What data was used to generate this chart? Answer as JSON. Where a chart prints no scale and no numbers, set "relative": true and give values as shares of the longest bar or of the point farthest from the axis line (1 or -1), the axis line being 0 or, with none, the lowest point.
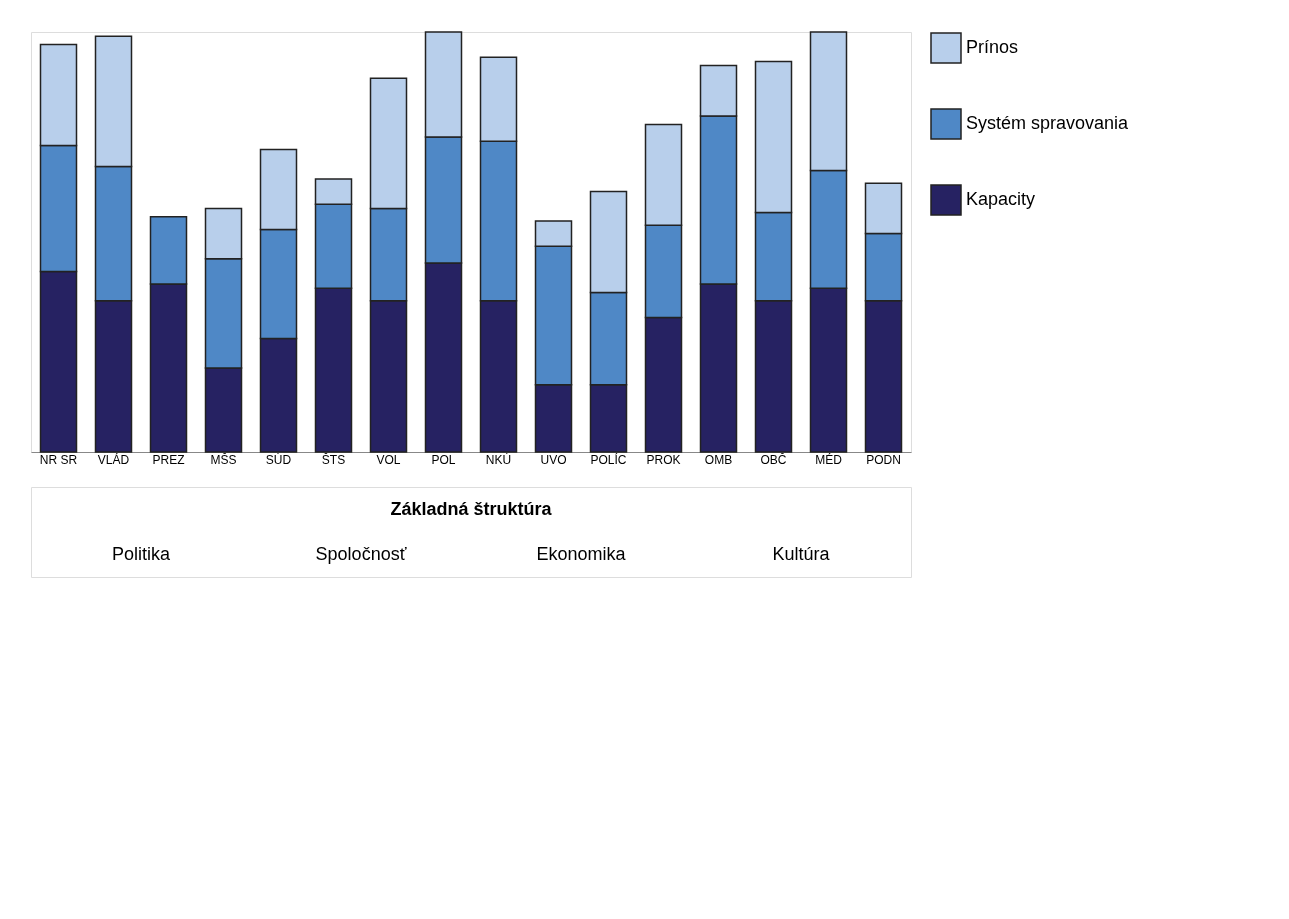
{
  "chart_data": {
    "type": "bar",
    "stacked": true,
    "relative": true,
    "legend": "right",
    "categories": [
      "NR SR",
      "VLÁD",
      "PREZ",
      "MŠS",
      "SÚD",
      "ŠTS",
      "VOL",
      "POL",
      "NKÚ",
      "UVO",
      "POLÍC",
      "PROK",
      "OMB",
      "OBČ",
      "MÉD",
      "PODN"
    ],
    "series": [
      {
        "name": "Kapacity",
        "color": "#262262",
        "values": [
          0.43,
          0.36,
          0.4,
          0.2,
          0.27,
          0.39,
          0.36,
          0.45,
          0.36,
          0.16,
          0.16,
          0.32,
          0.4,
          0.36,
          0.39,
          0.36
        ]
      },
      {
        "name": "Systém spravovania",
        "color": "#4f88c6",
        "values": [
          0.3,
          0.32,
          0.16,
          0.26,
          0.26,
          0.2,
          0.22,
          0.3,
          0.38,
          0.33,
          0.22,
          0.22,
          0.4,
          0.21,
          0.28,
          0.16
        ]
      },
      {
        "name": "Prínos",
        "color": "#b8cfeb",
        "values": [
          0.24,
          0.31,
          null,
          0.12,
          0.19,
          0.06,
          0.31,
          0.25,
          0.2,
          0.06,
          0.24,
          0.24,
          0.12,
          0.36,
          0.33,
          0.12
        ]
      }
    ],
    "annotations": [
      "Základná štruktúra",
      "Politika",
      "Spoločnosť",
      "Ekonomika",
      "Kultúra"
    ]
  }
}
